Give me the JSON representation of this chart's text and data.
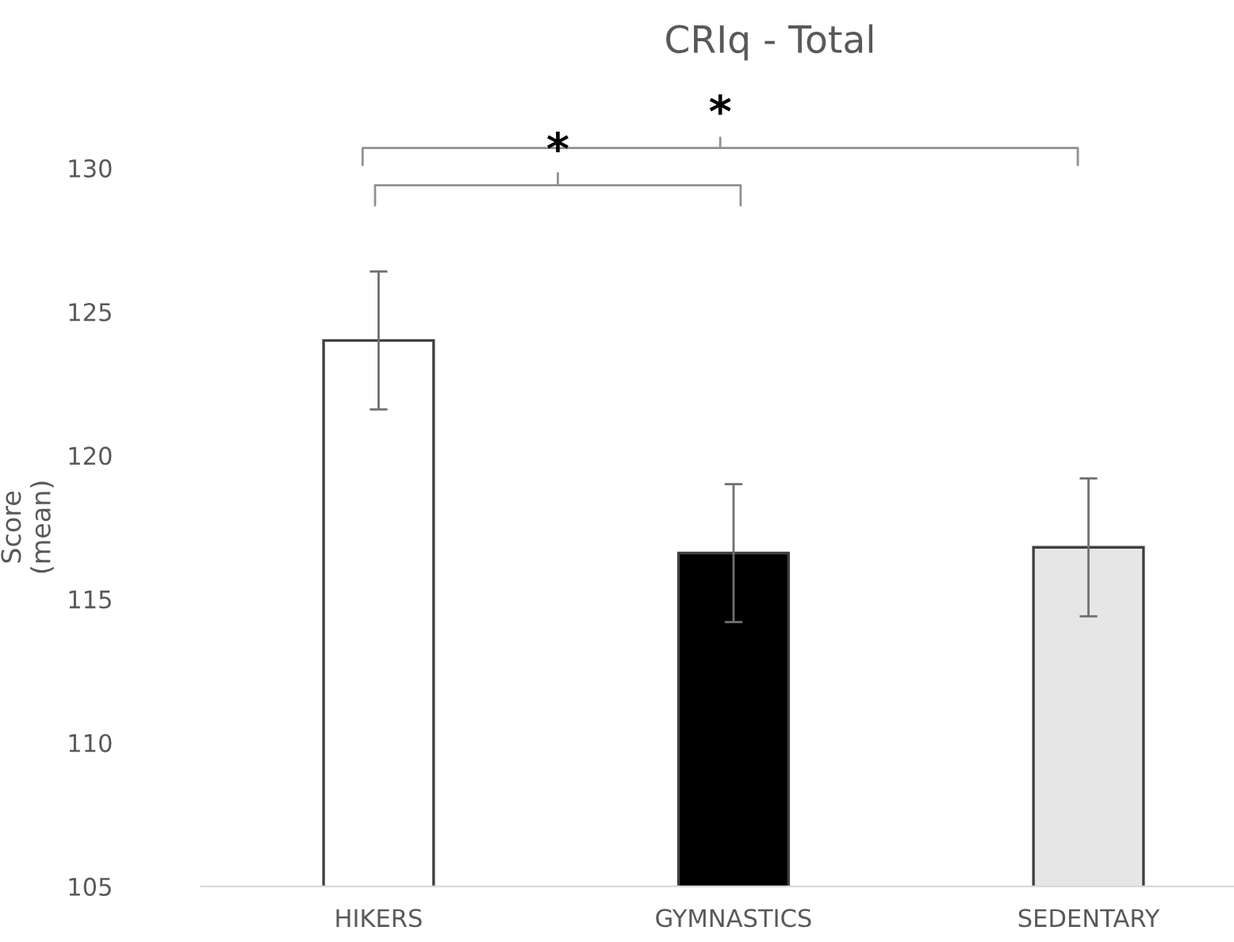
{
  "chart_data": {
    "type": "bar",
    "title": "CRIq - Total",
    "ylabel": "Score\n(mean)",
    "categories": [
      "HIKERS",
      "GYMNASTICS",
      "SEDENTARY"
    ],
    "values": [
      124.0,
      116.6,
      116.8
    ],
    "errors": [
      2.4,
      2.4,
      2.4
    ],
    "colors": [
      "#ffffff",
      "#000000",
      "#e7e6e6"
    ],
    "ylim": [
      105,
      130
    ],
    "yticks": [
      105,
      110,
      115,
      120,
      125,
      130
    ],
    "grid": false,
    "legend": false,
    "annotations": [
      "*",
      "*"
    ]
  }
}
